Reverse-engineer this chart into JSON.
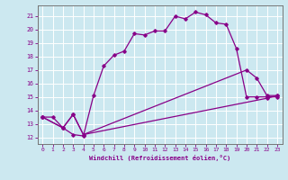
{
  "xlabel": "Windchill (Refroidissement éolien,°C)",
  "bg_color": "#cce8f0",
  "line_color": "#880088",
  "grid_color": "#ffffff",
  "xlim": [
    -0.5,
    23.5
  ],
  "ylim": [
    11.5,
    21.8
  ],
  "yticks": [
    12,
    13,
    14,
    15,
    16,
    17,
    18,
    19,
    20,
    21
  ],
  "xticks": [
    0,
    1,
    2,
    3,
    4,
    5,
    6,
    7,
    8,
    9,
    10,
    11,
    12,
    13,
    14,
    15,
    16,
    17,
    18,
    19,
    20,
    21,
    22,
    23
  ],
  "line1_x": [
    0,
    1,
    2,
    3,
    4,
    5,
    6,
    7,
    8,
    9,
    10,
    11,
    12,
    13,
    14,
    15,
    16,
    17,
    18,
    19,
    20,
    21,
    22,
    23
  ],
  "line1_y": [
    13.5,
    13.5,
    12.7,
    12.2,
    12.1,
    15.1,
    17.3,
    18.1,
    18.4,
    19.7,
    19.6,
    19.9,
    19.9,
    21.0,
    20.8,
    21.3,
    21.1,
    20.5,
    20.4,
    18.6,
    15.0,
    15.0,
    15.0,
    15.0
  ],
  "line2_x": [
    0,
    2,
    3,
    4,
    20,
    21,
    22,
    23
  ],
  "line2_y": [
    13.5,
    12.7,
    13.7,
    12.2,
    17.0,
    16.4,
    15.1,
    15.1
  ],
  "line3_x": [
    0,
    2,
    3,
    4,
    22,
    23
  ],
  "line3_y": [
    13.5,
    12.7,
    13.7,
    12.2,
    14.9,
    15.1
  ]
}
